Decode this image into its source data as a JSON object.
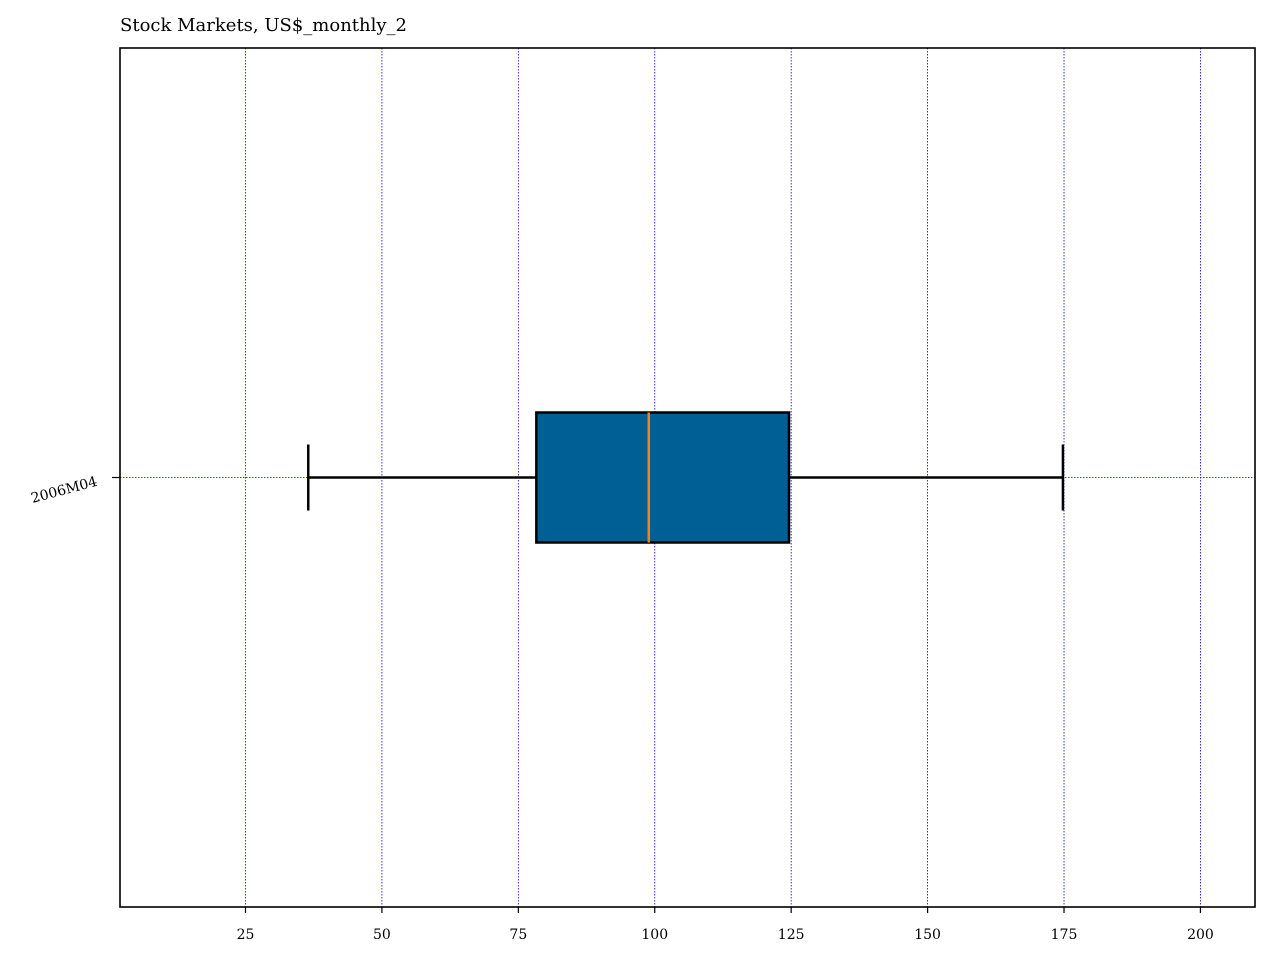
{
  "chart_data": {
    "type": "boxplot",
    "orientation": "horizontal",
    "title": "Stock Markets, US$_monthly_2",
    "xlabel": "",
    "ylabel": "",
    "xlim": [
      2,
      210
    ],
    "x_ticks": [
      25,
      50,
      75,
      100,
      125,
      150,
      175,
      200
    ],
    "grid": true,
    "categories": [
      "2006M04"
    ],
    "boxes": [
      {
        "category": "2006M04",
        "whisker_low": 36.5,
        "q1": 78.3,
        "median": 98.9,
        "q3": 124.6,
        "whisker_high": 174.8
      }
    ]
  },
  "colors": {
    "box_fill": "#005f94",
    "box_edge": "#000000",
    "median": "#ff7f0e",
    "grid": "#0000ff",
    "axes": "#000000"
  }
}
